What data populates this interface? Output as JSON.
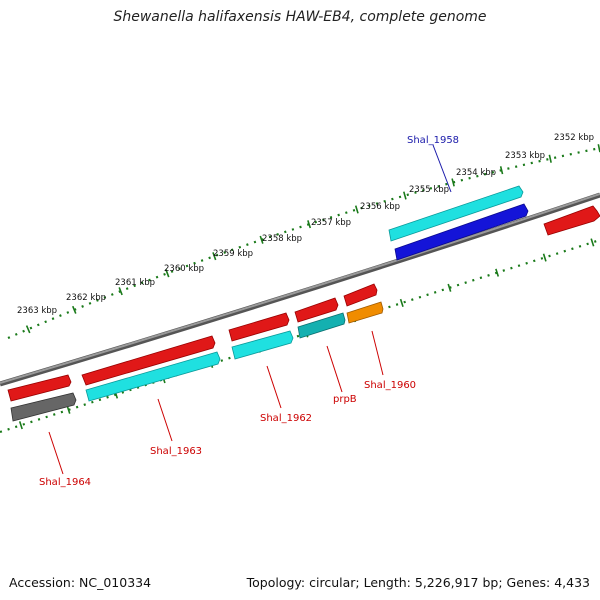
{
  "title": "Shewanella halifaxensis HAW-EB4, complete genome",
  "footer": {
    "accession": "Accession: NC_010334",
    "summary": "Topology: circular; Length: 5,226,917 bp; Genes: 4,433"
  },
  "ruler_labels": [
    "2352 kbp",
    "2353 kbp",
    "2354 kbp",
    "2355 kbp",
    "2356 kbp",
    "2357 kbp",
    "2358 kbp",
    "2359 kbp",
    "2360 kbp",
    "2361 kbp",
    "2362 kbp",
    "2363 kbp"
  ],
  "gene_labels": {
    "shal_1958": "Shal_1958",
    "shal_1960": "Shal_1960",
    "prpB": "prpB",
    "shal_1962": "Shal_1962",
    "shal_1963": "Shal_1963",
    "shal_1964": "Shal_1964"
  },
  "colors": {
    "red": "#e01818",
    "cyan": "#1fe0e0",
    "dark_cyan": "#14b0b0",
    "blue": "#1414d8",
    "orange": "#f08c00",
    "gray": "#666666",
    "backbone": "#7a7a7a",
    "ruler": "#1a7a1a",
    "label_red": "#cc0000",
    "label_blue": "#1a1aaa"
  }
}
